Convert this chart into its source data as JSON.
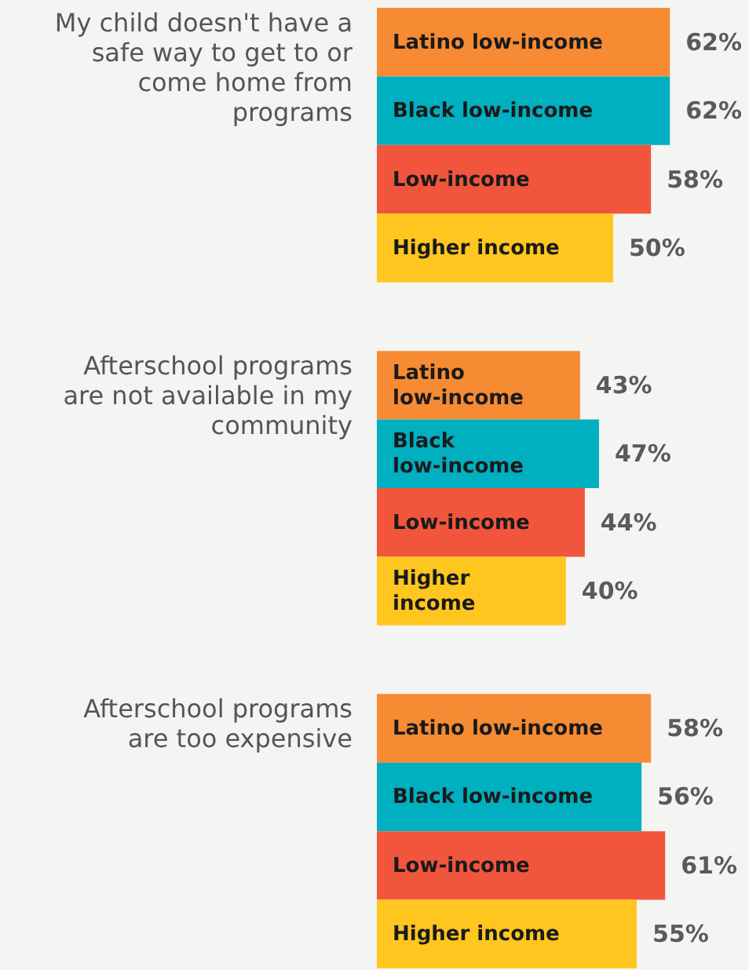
{
  "chart_data": {
    "type": "bar",
    "orientation": "horizontal",
    "grid": false,
    "categories": [
      "My child doesn't have a safe way to get to or come home from programs",
      "Afterschool programs are not available in my community",
      "Afterschool programs are too expensive"
    ],
    "series": [
      {
        "name": "Latino low-income",
        "color": "#f68b33",
        "values": [
          62,
          43,
          58
        ],
        "value_labels": [
          "62%",
          "43%",
          "58%"
        ]
      },
      {
        "name": "Black low-income",
        "color": "#00afc0",
        "values": [
          62,
          47,
          56
        ],
        "value_labels": [
          "62%",
          "47%",
          "56%"
        ]
      },
      {
        "name": "Low-income",
        "color": "#f1553c",
        "values": [
          58,
          44,
          61
        ],
        "value_labels": [
          "58%",
          "44%",
          "61%"
        ]
      },
      {
        "name": "Higher income",
        "color": "#fec61e",
        "values": [
          50,
          40,
          55
        ],
        "value_labels": [
          "50%",
          "40%",
          "55%"
        ]
      }
    ]
  }
}
